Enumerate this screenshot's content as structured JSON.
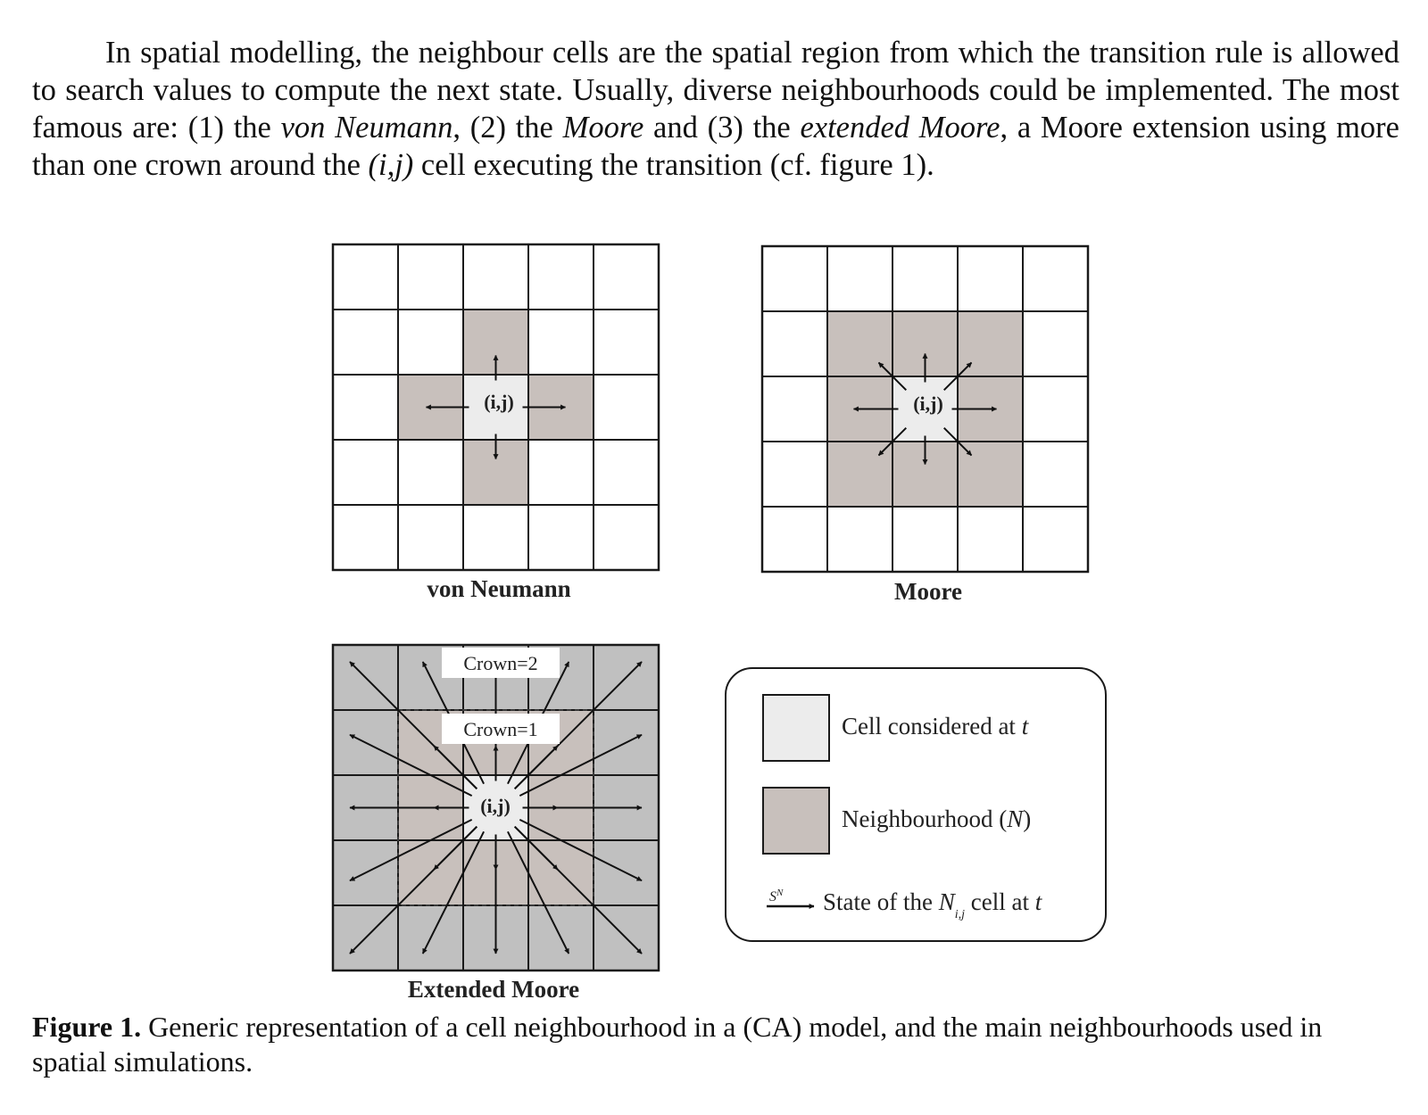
{
  "intro": {
    "s1": "In spatial modelling, the neighbour cells are the spatial region from which the transition rule is allowed to search values to compute the next state. Usually, diverse neighbourhoods could be implemented. The most famous are: (1) the ",
    "t1": "von Neumann",
    "s2": ", (2) the ",
    "t2": "Moore",
    "s3": " and (3) the ",
    "t3": "extended Moore",
    "s4": ", a Moore extension using more than one crown around the ",
    "t4": "(i,j)",
    "s5": " cell executing the transition (cf. figure 1)."
  },
  "figure": {
    "panels": {
      "von_neumann": {
        "title": "von Neumann",
        "center_label": "(i,j)"
      },
      "moore": {
        "title": "Moore",
        "center_label": "(i,j)"
      },
      "extended_moore": {
        "title": "Extended Moore",
        "center_label": "(i,j)",
        "crown2_label": "Crown=2",
        "crown1_label": "Crown=1"
      }
    },
    "legend": {
      "cell_label": "Cell considered at ",
      "cell_t": "t",
      "neigh_label": "Neighbourhood (",
      "neigh_N": "N",
      "neigh_close": ")",
      "arrow_symbol": "S",
      "arrow_symbol_sup": "N",
      "state_pre": "State of the ",
      "state_N": "N",
      "state_sub": "i,j",
      "state_post": " cell at ",
      "state_t": "t"
    },
    "colors": {
      "center_cell": "#ececec",
      "neighbour_cell": "#c8c0bc",
      "outer_crown": "#c0c0c0",
      "grid_line": "#1a1a1a"
    }
  },
  "caption": {
    "label": "Figure 1.",
    "text": " Generic representation of a cell neighbourhood in a (CA) model, and the main neighbourhoods used in spatial simulations."
  }
}
